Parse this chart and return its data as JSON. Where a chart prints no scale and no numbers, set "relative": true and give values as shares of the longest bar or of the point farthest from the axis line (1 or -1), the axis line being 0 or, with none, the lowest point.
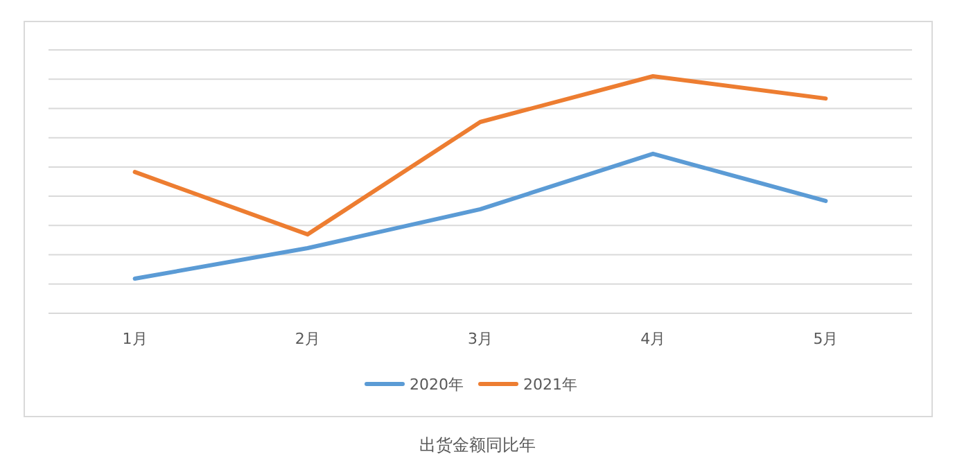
{
  "chart_data": {
    "type": "line",
    "title": "出货金额同比年",
    "categories": [
      "1月",
      "2月",
      "3月",
      "4月",
      "5月"
    ],
    "relative": true,
    "grid": "y",
    "legend": "bottom",
    "marker": "none",
    "line_style": "solid",
    "series": [
      {
        "name": "2020年",
        "color": "#5b9bd5",
        "values": [
          0.146,
          0.275,
          0.439,
          0.673,
          0.474
        ]
      },
      {
        "name": "2021年",
        "color": "#ed7d31",
        "values": [
          0.596,
          0.333,
          0.807,
          1,
          0.906
        ]
      }
    ]
  }
}
